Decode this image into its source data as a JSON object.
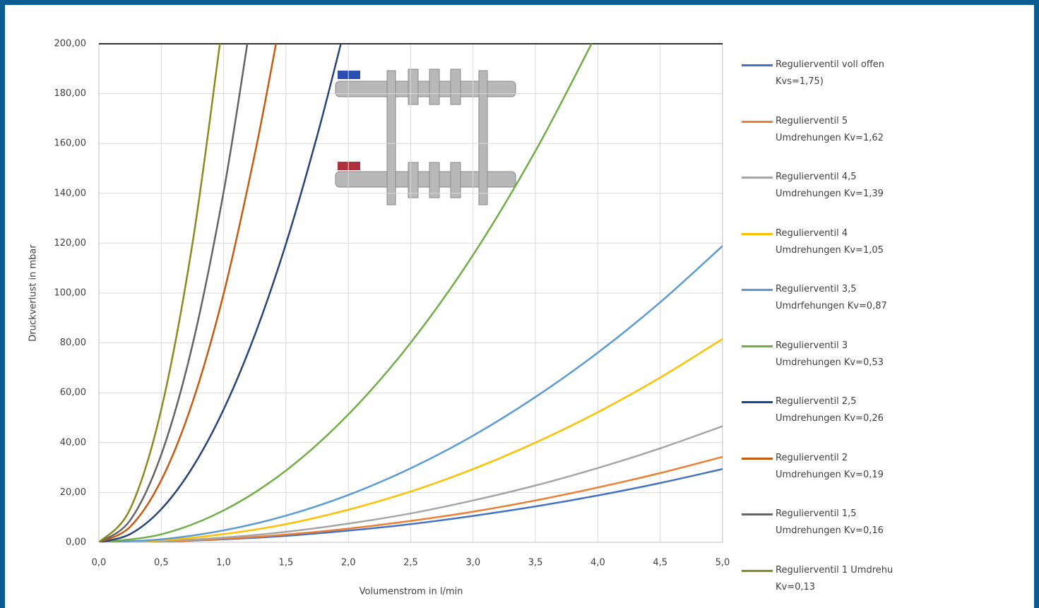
{
  "chart_data": {
    "type": "line",
    "xlabel": "Volumenstrom in l/min",
    "ylabel": "Druckverlust in mbar",
    "xlim": [
      0,
      5
    ],
    "ylim": [
      0,
      200
    ],
    "xticks": [
      {
        "value": 0,
        "label": "0,0"
      },
      {
        "value": 0.5,
        "label": "0,5"
      },
      {
        "value": 1,
        "label": "1,0"
      },
      {
        "value": 1.5,
        "label": "1,5"
      },
      {
        "value": 2,
        "label": "2,0"
      },
      {
        "value": 2.5,
        "label": "2,5"
      },
      {
        "value": 3,
        "label": "3,0"
      },
      {
        "value": 3.5,
        "label": "3,5"
      },
      {
        "value": 4,
        "label": "4,0"
      },
      {
        "value": 4.5,
        "label": "4,5"
      },
      {
        "value": 5,
        "label": "5,0"
      }
    ],
    "yticks": [
      {
        "value": 0,
        "label": "0,00"
      },
      {
        "value": 20,
        "label": "20,00"
      },
      {
        "value": 40,
        "label": "40,00"
      },
      {
        "value": 60,
        "label": "60,00"
      },
      {
        "value": 80,
        "label": "80,00"
      },
      {
        "value": 100,
        "label": "100,00"
      },
      {
        "value": 120,
        "label": "120,00"
      },
      {
        "value": 140,
        "label": "140,00"
      },
      {
        "value": 160,
        "label": "160,00"
      },
      {
        "value": 180,
        "label": "180,00"
      },
      {
        "value": 200,
        "label": "200,00"
      }
    ],
    "grid": true,
    "legend": "right",
    "series": [
      {
        "name": "Regulierventil voll offen\nKvs=1,75)",
        "color": "#4472c4",
        "x": [
          0,
          0.5,
          1,
          1.5,
          2,
          2.5,
          3,
          3.5,
          4,
          4.5,
          5
        ],
        "values": [
          0,
          0.3,
          1.2,
          2.6,
          4.7,
          7.3,
          10.6,
          14.4,
          18.8,
          23.8,
          29.4
        ]
      },
      {
        "name": "Regulierventil 5\nUmdrehungen Kv=1,62",
        "color": "#ed7d31",
        "x": [
          0,
          0.5,
          1,
          1.5,
          2,
          2.5,
          3,
          3.5,
          4,
          4.5,
          5
        ],
        "values": [
          0,
          0.3,
          1.4,
          3.1,
          5.5,
          8.6,
          12.3,
          16.8,
          22.0,
          27.8,
          34.3
        ]
      },
      {
        "name": "Regulierventil 4,5\nUmdrehungen Kv=1,39",
        "color": "#a5a5a5",
        "x": [
          0,
          0.5,
          1,
          1.5,
          2,
          2.5,
          3,
          3.5,
          4,
          4.5,
          5
        ],
        "values": [
          0,
          0.5,
          1.9,
          4.2,
          7.5,
          11.6,
          16.8,
          22.8,
          29.8,
          37.7,
          46.6
        ]
      },
      {
        "name": "Regulierventil 4\nUmdrehungen Kv=1,05",
        "color": "#ffc000",
        "x": [
          0,
          0.5,
          1,
          1.5,
          2,
          2.5,
          3,
          3.5,
          4,
          4.5,
          5
        ],
        "values": [
          0,
          0.8,
          3.3,
          7.3,
          13.1,
          20.4,
          29.4,
          40.0,
          52.2,
          66.1,
          81.6
        ]
      },
      {
        "name": "Regulierventil 3,5\nUmdrfehungen Kv=0,87",
        "color": "#5b9bd5",
        "x": [
          0,
          0.5,
          1,
          1.5,
          2,
          2.5,
          3,
          3.5,
          4,
          4.5,
          5
        ],
        "values": [
          0,
          1.2,
          4.8,
          10.7,
          19.0,
          29.7,
          42.8,
          58.3,
          76.1,
          96.3,
          118.9
        ]
      },
      {
        "name": "Regulierventil 3\nUmdrehungen Kv=0,53",
        "color": "#70ad47",
        "x": [
          0,
          0.5,
          1,
          1.5,
          2,
          2.5,
          3,
          3.5,
          3.95
        ],
        "values": [
          0,
          3.2,
          12.8,
          28.8,
          51.3,
          80.1,
          115.3,
          157.0,
          200
        ]
      },
      {
        "name": "Regulierventil 2,5\nUmdrehungen Kv=0,26",
        "color": "#264478",
        "x": [
          0,
          0.25,
          0.5,
          0.75,
          1,
          1.25,
          1.5,
          1.75,
          1.94
        ],
        "values": [
          0,
          3.3,
          13.3,
          30.0,
          53.3,
          83.2,
          119.8,
          163.1,
          200
        ]
      },
      {
        "name": "Regulierventil 2\nUmdrehungen Kv=0,19",
        "color": "#c55a11",
        "x": [
          0,
          0.25,
          0.5,
          0.75,
          1,
          1.25,
          1.42
        ],
        "values": [
          0,
          6.2,
          24.9,
          56.1,
          99.7,
          155.8,
          200
        ]
      },
      {
        "name": "Regulierventil 1,5\nUmdrehungen Kv=0,16",
        "color": "#636363",
        "x": [
          0,
          0.25,
          0.5,
          0.75,
          1,
          1.19
        ],
        "values": [
          0,
          8.8,
          35.2,
          79.1,
          140.6,
          200
        ]
      },
      {
        "name": "Regulierventil 1 Umdrehu\nKv=0,13",
        "color": "#8a8a1e",
        "x": [
          0,
          0.25,
          0.5,
          0.75,
          0.97
        ],
        "values": [
          0,
          13.3,
          53.3,
          119.8,
          200
        ]
      }
    ]
  }
}
